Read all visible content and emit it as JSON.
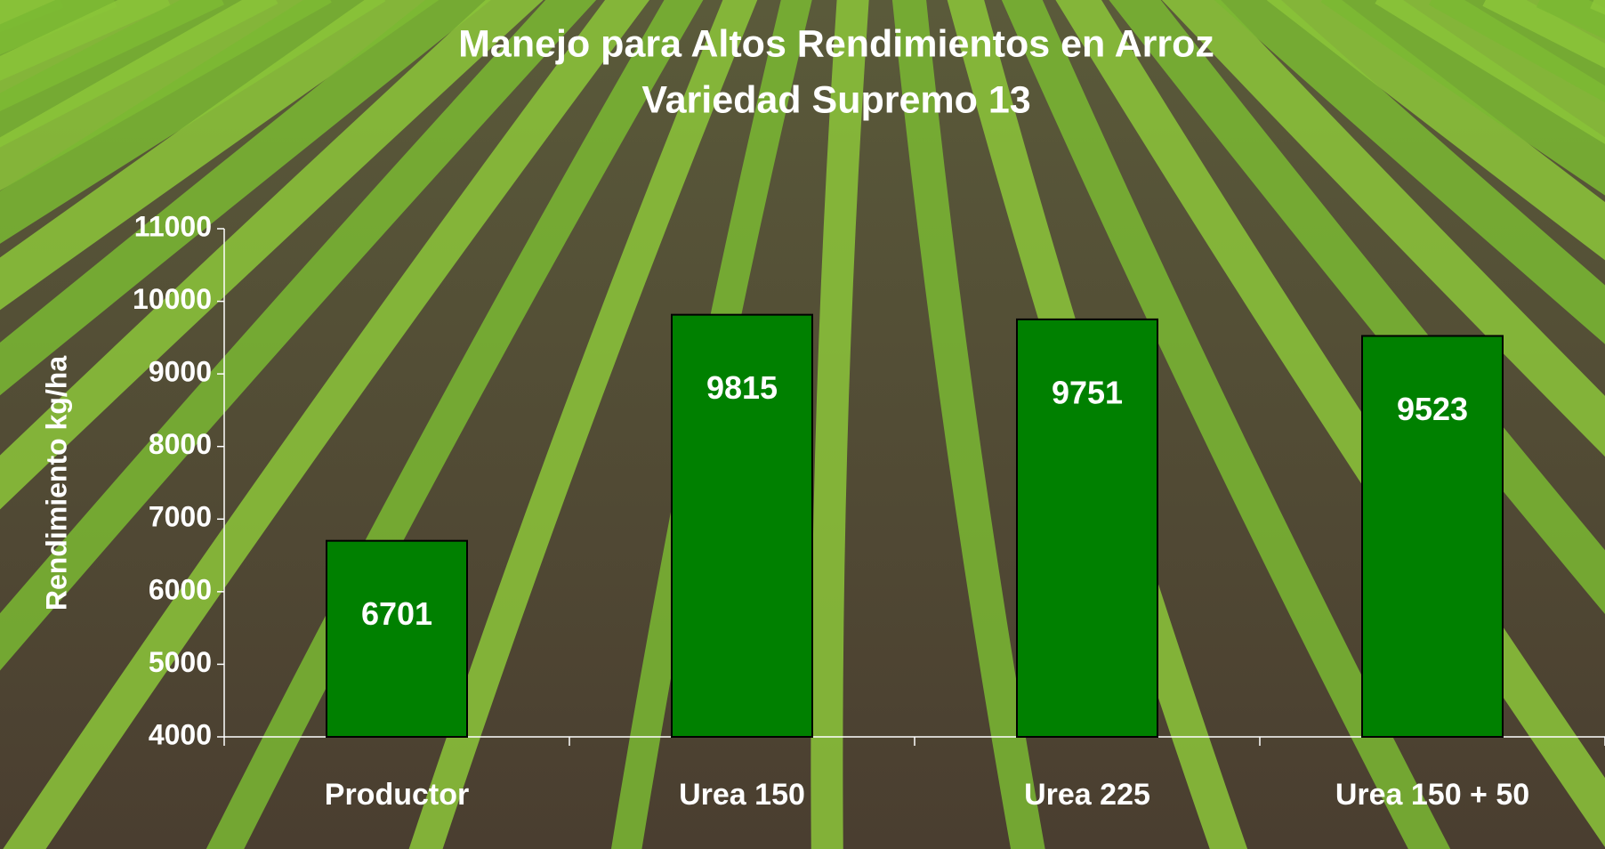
{
  "chart_data": {
    "type": "bar",
    "title": "Manejo para Altos Rendimientos en Arroz",
    "subtitle": "Variedad Supremo 13",
    "y_label": "Rendimiento kg/ha",
    "categories": [
      "Productor",
      "Urea 150",
      "Urea 225",
      "Urea 150 + 50"
    ],
    "values": [
      6701,
      9815,
      9751,
      9523
    ],
    "color": "#008000",
    "ylim": [
      4000,
      11000
    ],
    "yticks": [
      4000,
      5000,
      6000,
      7000,
      8000,
      9000,
      10000,
      11000
    ]
  }
}
